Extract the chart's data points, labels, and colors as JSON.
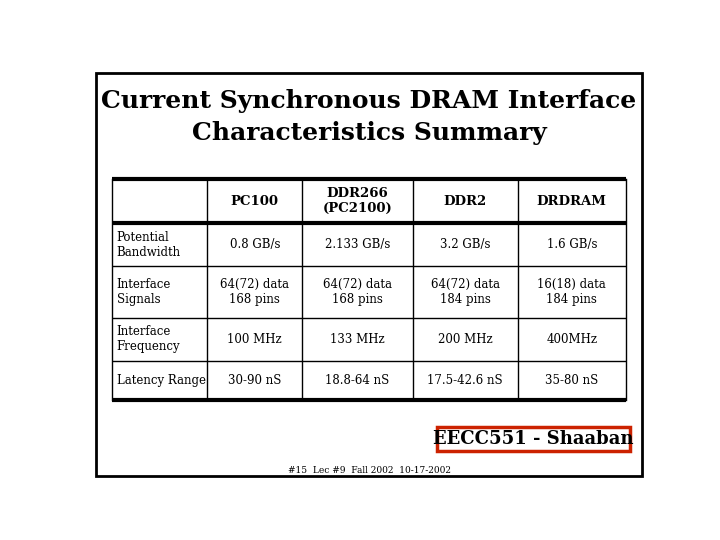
{
  "title_line1": "Current Synchronous DRAM Interface",
  "title_line2": "Characteristics Summary",
  "title_fontsize": 18,
  "background_color": "#ffffff",
  "border_color": "#000000",
  "footer_text": "EECC551 - Shaaban",
  "footer_sub": "#15  Lec #9  Fall 2002  10-17-2002",
  "col_headers": [
    "",
    "PC100",
    "DDR266\n(PC2100)",
    "DDR2",
    "DRDRAM"
  ],
  "row_headers": [
    "Potential\nBandwidth",
    "Interface\nSignals",
    "Interface\nFrequency",
    "Latency Range"
  ],
  "table_data": [
    [
      "0.8 GB/s",
      "2.133 GB/s",
      "3.2 GB/s",
      "1.6 GB/s"
    ],
    [
      "64(72) data\n168 pins",
      "64(72) data\n168 pins",
      "64(72) data\n184 pins",
      "16(18) data\n184 pins"
    ],
    [
      "100 MHz",
      "133 MHz",
      "200 MHz",
      "400MHz"
    ],
    [
      "30-90 nS",
      "18.8-64 nS",
      "17.5-42.6 nS",
      "35-80 nS"
    ]
  ],
  "text_color": "#000000",
  "font_family": "serif",
  "table_font_size": 8.5,
  "header_font_size": 9.5,
  "footer_font_size": 13,
  "footer_sub_fontsize": 6.5
}
